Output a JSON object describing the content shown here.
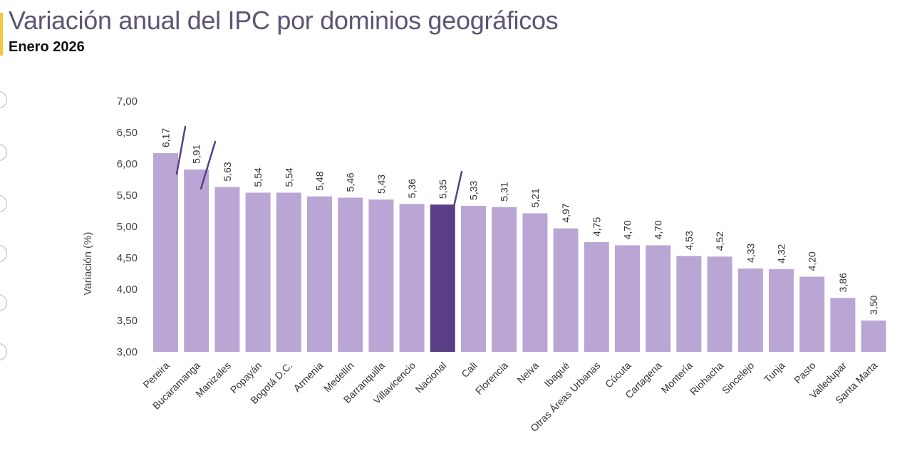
{
  "header": {
    "title": "Variación anual del IPC por dominios geográficos",
    "subtitle": "Enero 2026",
    "accent_color": "#f0c83c"
  },
  "colors": {
    "bar": "#b9a6d4",
    "highlight_bar": "#5b3f86",
    "annotation_line": "#5b3f86",
    "axis_text": "#444444"
  },
  "chart_data": {
    "type": "bar",
    "title": "Variación anual del IPC por dominios geográficos",
    "subtitle": "Enero 2026",
    "xlabel": "",
    "ylabel": "Variación (%)",
    "ylim": [
      3.0,
      7.0
    ],
    "yticks": [
      "3,00",
      "3,50",
      "4,00",
      "4,50",
      "5,00",
      "5,50",
      "6,00",
      "6,50",
      "7,00"
    ],
    "grid": false,
    "legend": null,
    "highlight_category": "Nacional",
    "categories": [
      "Pereira",
      "Bucaramanga",
      "Manizales",
      "Popayán",
      "Bogotá D.C.",
      "Armenia",
      "Medellín",
      "Barranquilla",
      "Villavicencio",
      "Nacional",
      "Cali",
      "Florencia",
      "Neiva",
      "Ibagué",
      "Otras Áreas Urbanas",
      "Cúcuta",
      "Cartagena",
      "Montería",
      "Riohacha",
      "Sincelejo",
      "Tunja",
      "Pasto",
      "Valledupar",
      "Santa Marta"
    ],
    "values": [
      6.17,
      5.91,
      5.63,
      5.54,
      5.54,
      5.48,
      5.46,
      5.43,
      5.36,
      5.35,
      5.33,
      5.31,
      5.21,
      4.97,
      4.75,
      4.7,
      4.7,
      4.53,
      4.52,
      4.33,
      4.32,
      4.2,
      3.86,
      3.5
    ],
    "value_labels": [
      "6,17",
      "5,91",
      "5,63",
      "5,54",
      "5,54",
      "5,48",
      "5,46",
      "5,43",
      "5,36",
      "5,35",
      "5,33",
      "5,31",
      "5,21",
      "4,97",
      "4,75",
      "4,70",
      "4,70",
      "4,53",
      "4,52",
      "4,33",
      "4,32",
      "4,20",
      "3,86",
      "3,50"
    ],
    "annotations": [
      "hand-drawn marks on Pereira, Bucaramanga and Nacional bars"
    ]
  }
}
